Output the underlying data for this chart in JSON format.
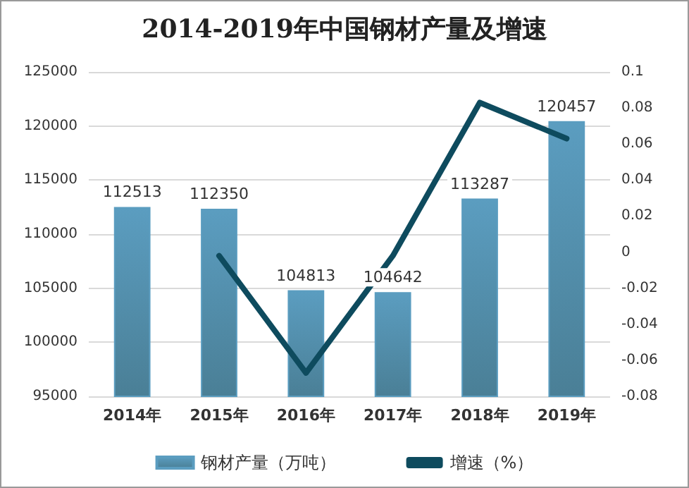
{
  "chart_data": {
    "type": "bar",
    "title": "2014-2019年中国钢材产量及增速",
    "categories": [
      "2014年",
      "2015年",
      "2016年",
      "2017年",
      "2018年",
      "2019年"
    ],
    "series": [
      {
        "name": "钢材产量（万吨）",
        "color": "#5b9dc0",
        "values": [
          112513,
          112350,
          104813,
          104642,
          113287,
          120457
        ],
        "value_labels": [
          "112513",
          "112350",
          "104813",
          "104642",
          "113287",
          "120457"
        ]
      },
      {
        "name": "增速（%）",
        "type": "line",
        "axis": "y2",
        "color": "#0e4b5e",
        "values": [
          null,
          -0.002,
          -0.067,
          -0.002,
          0.083,
          0.063
        ]
      }
    ],
    "ylim": [
      95000,
      125000
    ],
    "yticks": [
      95000,
      100000,
      105000,
      110000,
      115000,
      120000,
      125000
    ],
    "y2lim": [
      -0.08,
      0.1
    ],
    "y2ticks": [
      -0.08,
      -0.06,
      -0.04,
      -0.02,
      0,
      0.02,
      0.04,
      0.06,
      0.08,
      0.1
    ],
    "grid": "y",
    "legend": "bottom",
    "marker": "none",
    "line_style": "solid"
  }
}
